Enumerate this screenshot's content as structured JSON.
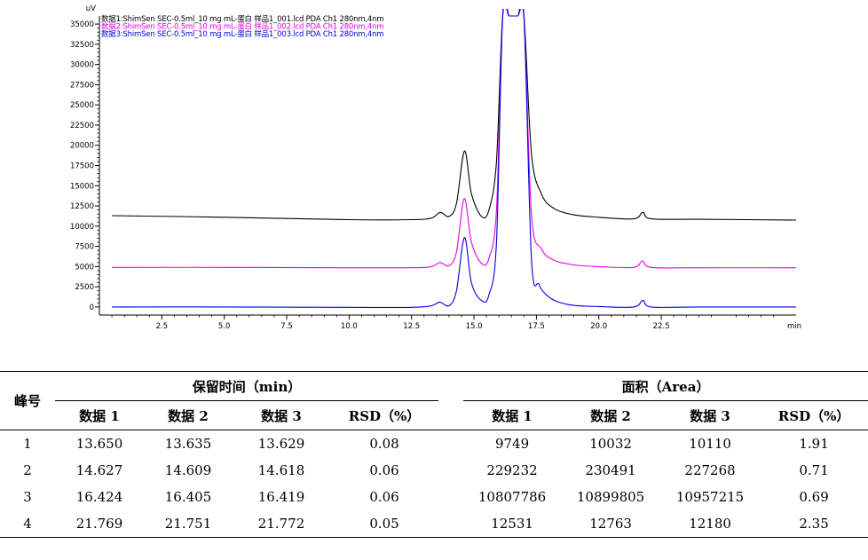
{
  "chart_data": {
    "type": "line",
    "y_unit": "uV",
    "x_unit": "min",
    "xlim": [
      0,
      27.9
    ],
    "ylim": [
      -1000,
      36000
    ],
    "x_ticks": [
      2.5,
      5.0,
      7.5,
      10.0,
      12.5,
      15.0,
      17.5,
      20.0,
      22.5
    ],
    "x_tick_labels": [
      "2.5",
      "5.0",
      "7.5",
      "10.0",
      "12.5",
      "15.0",
      "17.5",
      "20.0",
      "22.5"
    ],
    "y_ticks": [
      0,
      2500,
      5000,
      7500,
      10000,
      12500,
      15000,
      17500,
      20000,
      22500,
      25000,
      27500,
      30000,
      32500,
      35000
    ],
    "y_tick_labels": [
      "0",
      "2500",
      "5000",
      "7500",
      "10000",
      "12500",
      "15000",
      "17500",
      "20000",
      "22500",
      "25000",
      "27500",
      "30000",
      "32500",
      "35000"
    ],
    "series": [
      {
        "name": "数据1:ShimSen SEC-0.5ml_10 mg mL-蛋白 样品1_001.lcd PDA Ch1 280nm,4nm",
        "color": "#000000",
        "x": [
          0.5,
          5,
          10,
          12.5,
          13.3,
          13.65,
          14.0,
          14.3,
          14.62,
          14.9,
          15.3,
          15.6,
          15.9,
          16.15,
          16.42,
          16.75,
          17.0,
          17.3,
          17.7,
          18.2,
          19.0,
          20.0,
          21.4,
          21.77,
          22.1,
          24.0,
          27.9
        ],
        "y": [
          11300,
          11100,
          10800,
          10800,
          11000,
          11700,
          11200,
          12800,
          19300,
          14000,
          11200,
          12000,
          18000,
          36000,
          36000,
          36000,
          36000,
          19000,
          14000,
          12200,
          11400,
          11100,
          10900,
          11700,
          10900,
          10850,
          10750
        ]
      },
      {
        "name": "数据2:ShimSen SEC-0.5ml_10 mg mL-蛋白 样品1_002.lcd PDA Ch1 280nm,4nm",
        "color": "#e800e8",
        "x": [
          0.5,
          5,
          10,
          12.5,
          13.3,
          13.635,
          14.0,
          14.3,
          14.61,
          14.9,
          15.3,
          15.6,
          15.9,
          16.15,
          16.4,
          16.75,
          17.0,
          17.3,
          17.7,
          18.2,
          19.0,
          20.0,
          21.4,
          21.75,
          22.1,
          24.0,
          27.9
        ],
        "y": [
          4900,
          4900,
          4850,
          4850,
          5000,
          5500,
          5100,
          6800,
          13400,
          8000,
          5400,
          6000,
          12000,
          36000,
          36000,
          36000,
          36000,
          11500,
          7200,
          5800,
          5200,
          5000,
          4900,
          5700,
          4900,
          4850,
          4850
        ]
      },
      {
        "name": "数据3:ShimSen SEC-0.5ml_10 mg mL-蛋白 样品1_003.lcd PDA Ch1 280nm,4nm",
        "color": "#0000e0",
        "x": [
          0.5,
          5,
          10,
          12.5,
          13.3,
          13.629,
          14.0,
          14.3,
          14.618,
          14.9,
          15.3,
          15.6,
          15.9,
          16.15,
          16.42,
          16.75,
          17.0,
          17.3,
          17.6,
          17.9,
          18.3,
          19.0,
          20.0,
          21.4,
          21.77,
          22.1,
          24.0,
          27.9
        ],
        "y": [
          0,
          0,
          -50,
          -50,
          150,
          600,
          150,
          2000,
          8600,
          3000,
          800,
          1500,
          8000,
          36000,
          36000,
          36000,
          36000,
          6000,
          2800,
          1500,
          700,
          200,
          50,
          0,
          800,
          0,
          0,
          0
        ]
      }
    ]
  },
  "table": {
    "col_peak": "峰号",
    "group_rt": "保留时间（min）",
    "group_area": "面积（Area）",
    "sub_headers": [
      "数据 1",
      "数据 2",
      "数据 3",
      "RSD（%）"
    ],
    "rows": [
      {
        "peak": "1",
        "rt": [
          "13.650",
          "13.635",
          "13.629",
          "0.08"
        ],
        "area": [
          "9749",
          "10032",
          "10110",
          "1.91"
        ]
      },
      {
        "peak": "2",
        "rt": [
          "14.627",
          "14.609",
          "14.618",
          "0.06"
        ],
        "area": [
          "229232",
          "230491",
          "227268",
          "0.71"
        ]
      },
      {
        "peak": "3",
        "rt": [
          "16.424",
          "16.405",
          "16.419",
          "0.06"
        ],
        "area": [
          "10807786",
          "10899805",
          "10957215",
          "0.69"
        ]
      },
      {
        "peak": "4",
        "rt": [
          "21.769",
          "21.751",
          "21.772",
          "0.05"
        ],
        "area": [
          "12531",
          "12763",
          "12180",
          "2.35"
        ]
      }
    ]
  }
}
